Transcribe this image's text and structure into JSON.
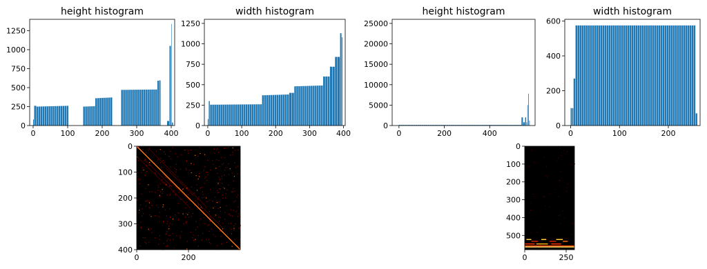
{
  "accent_color": "#1f77b4",
  "chart_data": [
    {
      "type": "bar",
      "title": "height histogram",
      "xlabel": "",
      "ylabel": "",
      "xlim": [
        -10,
        410
      ],
      "ylim": [
        0,
        1400
      ],
      "xticks": [
        0,
        100,
        200,
        300,
        400
      ],
      "yticks": [
        0,
        250,
        500,
        750,
        1000,
        1250
      ],
      "segments": [
        {
          "x": [
            0,
            3
          ],
          "values": [
            80,
            80
          ]
        },
        {
          "x": [
            3,
            10
          ],
          "values": [
            230,
            260
          ]
        },
        {
          "x": [
            10,
            103
          ],
          "values": [
            250,
            260
          ]
        },
        {
          "x": [
            145,
            180
          ],
          "values": [
            250,
            255
          ]
        },
        {
          "x": [
            180,
            230
          ],
          "values": [
            360,
            370
          ]
        },
        {
          "x": [
            255,
            360
          ],
          "values": [
            470,
            475
          ]
        },
        {
          "x": [
            360,
            370
          ],
          "values": [
            590,
            595
          ]
        },
        {
          "x": [
            388,
            395
          ],
          "values": [
            60,
            60
          ]
        },
        {
          "x": [
            395,
            400
          ],
          "values": [
            820,
            1050
          ]
        },
        {
          "x": [
            400,
            402
          ],
          "values": [
            1340,
            1340
          ]
        },
        {
          "x": [
            402,
            406
          ],
          "values": [
            40,
            40
          ]
        }
      ]
    },
    {
      "type": "bar",
      "title": "width histogram",
      "xlabel": "",
      "ylabel": "",
      "xlim": [
        -10,
        405
      ],
      "ylim": [
        0,
        1300
      ],
      "xticks": [
        0,
        100,
        200,
        300,
        400
      ],
      "yticks": [
        0,
        250,
        500,
        750,
        1000,
        1250
      ],
      "segments": [
        {
          "x": [
            0,
            3
          ],
          "values": [
            80,
            80
          ]
        },
        {
          "x": [
            3,
            7
          ],
          "values": [
            300,
            300
          ]
        },
        {
          "x": [
            7,
            160
          ],
          "values": [
            255,
            260
          ]
        },
        {
          "x": [
            160,
            240
          ],
          "values": [
            370,
            380
          ]
        },
        {
          "x": [
            240,
            255
          ],
          "values": [
            400,
            400
          ]
        },
        {
          "x": [
            255,
            340
          ],
          "values": [
            480,
            490
          ]
        },
        {
          "x": [
            340,
            360
          ],
          "values": [
            600,
            600
          ]
        },
        {
          "x": [
            360,
            375
          ],
          "values": [
            720,
            720
          ]
        },
        {
          "x": [
            375,
            390
          ],
          "values": [
            840,
            840
          ]
        },
        {
          "x": [
            390,
            395
          ],
          "values": [
            1130,
            1130
          ]
        },
        {
          "x": [
            395,
            398
          ],
          "values": [
            1080,
            1080
          ]
        }
      ]
    },
    {
      "type": "bar",
      "title": "height histogram",
      "xlabel": "",
      "ylabel": "",
      "xlim": [
        -30,
        600
      ],
      "ylim": [
        0,
        26000
      ],
      "xticks": [
        0,
        200,
        400
      ],
      "yticks": [
        0,
        5000,
        10000,
        15000,
        20000,
        25000
      ],
      "segments": [
        {
          "x": [
            0,
            540
          ],
          "values": [
            150,
            150
          ]
        },
        {
          "x": [
            540,
            548
          ],
          "values": [
            2000,
            2000
          ]
        },
        {
          "x": [
            548,
            556
          ],
          "values": [
            800,
            800
          ]
        },
        {
          "x": [
            556,
            562
          ],
          "values": [
            2000,
            2000
          ]
        },
        {
          "x": [
            562,
            566
          ],
          "values": [
            800,
            800
          ]
        },
        {
          "x": [
            566,
            570
          ],
          "values": [
            5000,
            5000
          ]
        },
        {
          "x": [
            570,
            574
          ],
          "values": [
            7800,
            7800
          ]
        },
        {
          "x": [
            574,
            578
          ],
          "values": [
            1200,
            1200
          ]
        }
      ]
    },
    {
      "type": "bar",
      "title": "width histogram",
      "xlabel": "",
      "ylabel": "",
      "xlim": [
        -12,
        265
      ],
      "ylim": [
        0,
        610
      ],
      "xticks": [
        0,
        100,
        200
      ],
      "yticks": [
        0,
        200,
        400,
        600
      ],
      "segments": [
        {
          "x": [
            0,
            3
          ],
          "values": [
            100,
            100
          ]
        },
        {
          "x": [
            3,
            6
          ],
          "values": [
            100,
            100
          ]
        },
        {
          "x": [
            6,
            10
          ],
          "values": [
            270,
            270
          ]
        },
        {
          "x": [
            10,
            256
          ],
          "values": [
            575,
            575
          ]
        },
        {
          "x": [
            256,
            260
          ],
          "values": [
            70,
            70
          ]
        }
      ]
    },
    {
      "type": "heatmap",
      "title": "",
      "colormap": "hot",
      "xlim": [
        0,
        400
      ],
      "ylim": [
        400,
        0
      ],
      "xticks": [
        0,
        200
      ],
      "yticks": [
        0,
        100,
        200,
        300,
        400
      ],
      "feature": "bright diagonal from (0,0) to (400,400) with sparse off-diagonal red dots on black"
    },
    {
      "type": "heatmap",
      "title": "",
      "colormap": "hot",
      "xlim": [
        0,
        300
      ],
      "ylim": [
        580,
        0
      ],
      "xticks": [
        0,
        250
      ],
      "yticks": [
        0,
        100,
        200,
        300,
        400,
        500
      ],
      "feature": "mostly black with bright yellow/red horizontal dashes near rows 520-560"
    }
  ]
}
